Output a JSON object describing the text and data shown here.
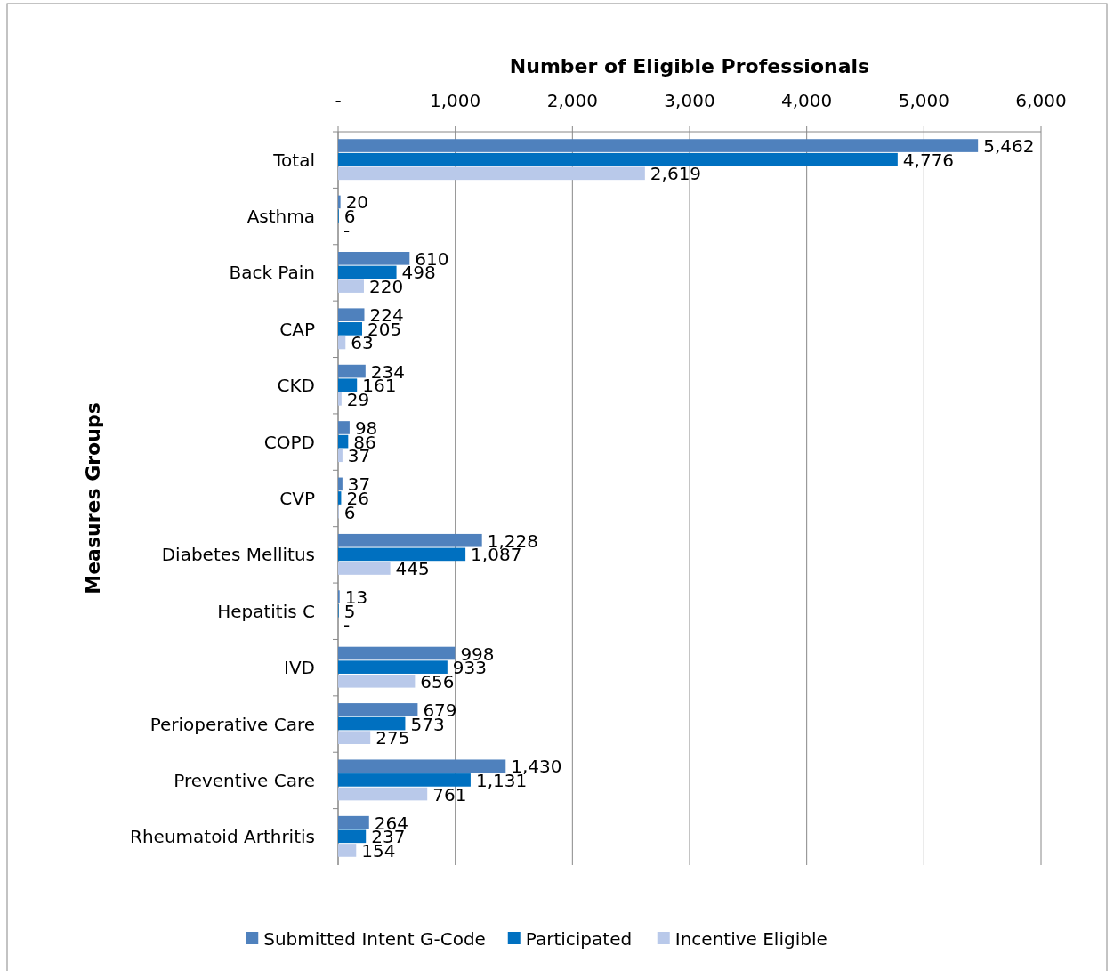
{
  "chart_data": {
    "type": "bar",
    "orientation": "horizontal",
    "xlabel": "Number of Eligible Professionals",
    "ylabel": "Measures Groups",
    "categories": [
      "Total",
      "Asthma",
      "Back Pain",
      "CAP",
      "CKD",
      "COPD",
      "CVP",
      "Diabetes Mellitus",
      "Hepatitis C",
      "IVD",
      "Perioperative Care",
      "Preventive Care",
      "Rheumatoid Arthritis"
    ],
    "series": [
      {
        "name": "Submitted Intent G-Code",
        "color": "#4f81bd",
        "values": [
          5462,
          20,
          610,
          224,
          234,
          98,
          37,
          1228,
          13,
          998,
          679,
          1430,
          264
        ],
        "value_labels": [
          "5,462",
          "20",
          "610",
          "224",
          "234",
          "98",
          "37",
          "1,228",
          "13",
          "998",
          "679",
          "1,430",
          "264"
        ]
      },
      {
        "name": "Participated",
        "color": "#0070c0",
        "values": [
          4776,
          6,
          498,
          205,
          161,
          86,
          26,
          1087,
          5,
          933,
          573,
          1131,
          237
        ],
        "value_labels": [
          "4,776",
          "6",
          "498",
          "205",
          "161",
          "86",
          "26",
          "1,087",
          "5",
          "933",
          "573",
          "1,131",
          "237"
        ]
      },
      {
        "name": "Incentive Eligible",
        "color": "#b9c9ea",
        "values": [
          2619,
          0,
          220,
          63,
          29,
          37,
          6,
          445,
          0,
          656,
          275,
          761,
          154
        ],
        "value_labels": [
          "2,619",
          "-",
          "220",
          "63",
          "29",
          "37",
          "6",
          "445",
          "-",
          "656",
          "275",
          "761",
          "154"
        ]
      }
    ],
    "xlim": [
      0,
      6000
    ],
    "xticks": [
      {
        "value": 0,
        "label": "-"
      },
      {
        "value": 1000,
        "label": "1,000"
      },
      {
        "value": 2000,
        "label": "2,000"
      },
      {
        "value": 3000,
        "label": "3,000"
      },
      {
        "value": 4000,
        "label": "4,000"
      },
      {
        "value": 5000,
        "label": "5,000"
      },
      {
        "value": 6000,
        "label": "6,000"
      }
    ],
    "grid": "x",
    "legend": "bottom"
  }
}
